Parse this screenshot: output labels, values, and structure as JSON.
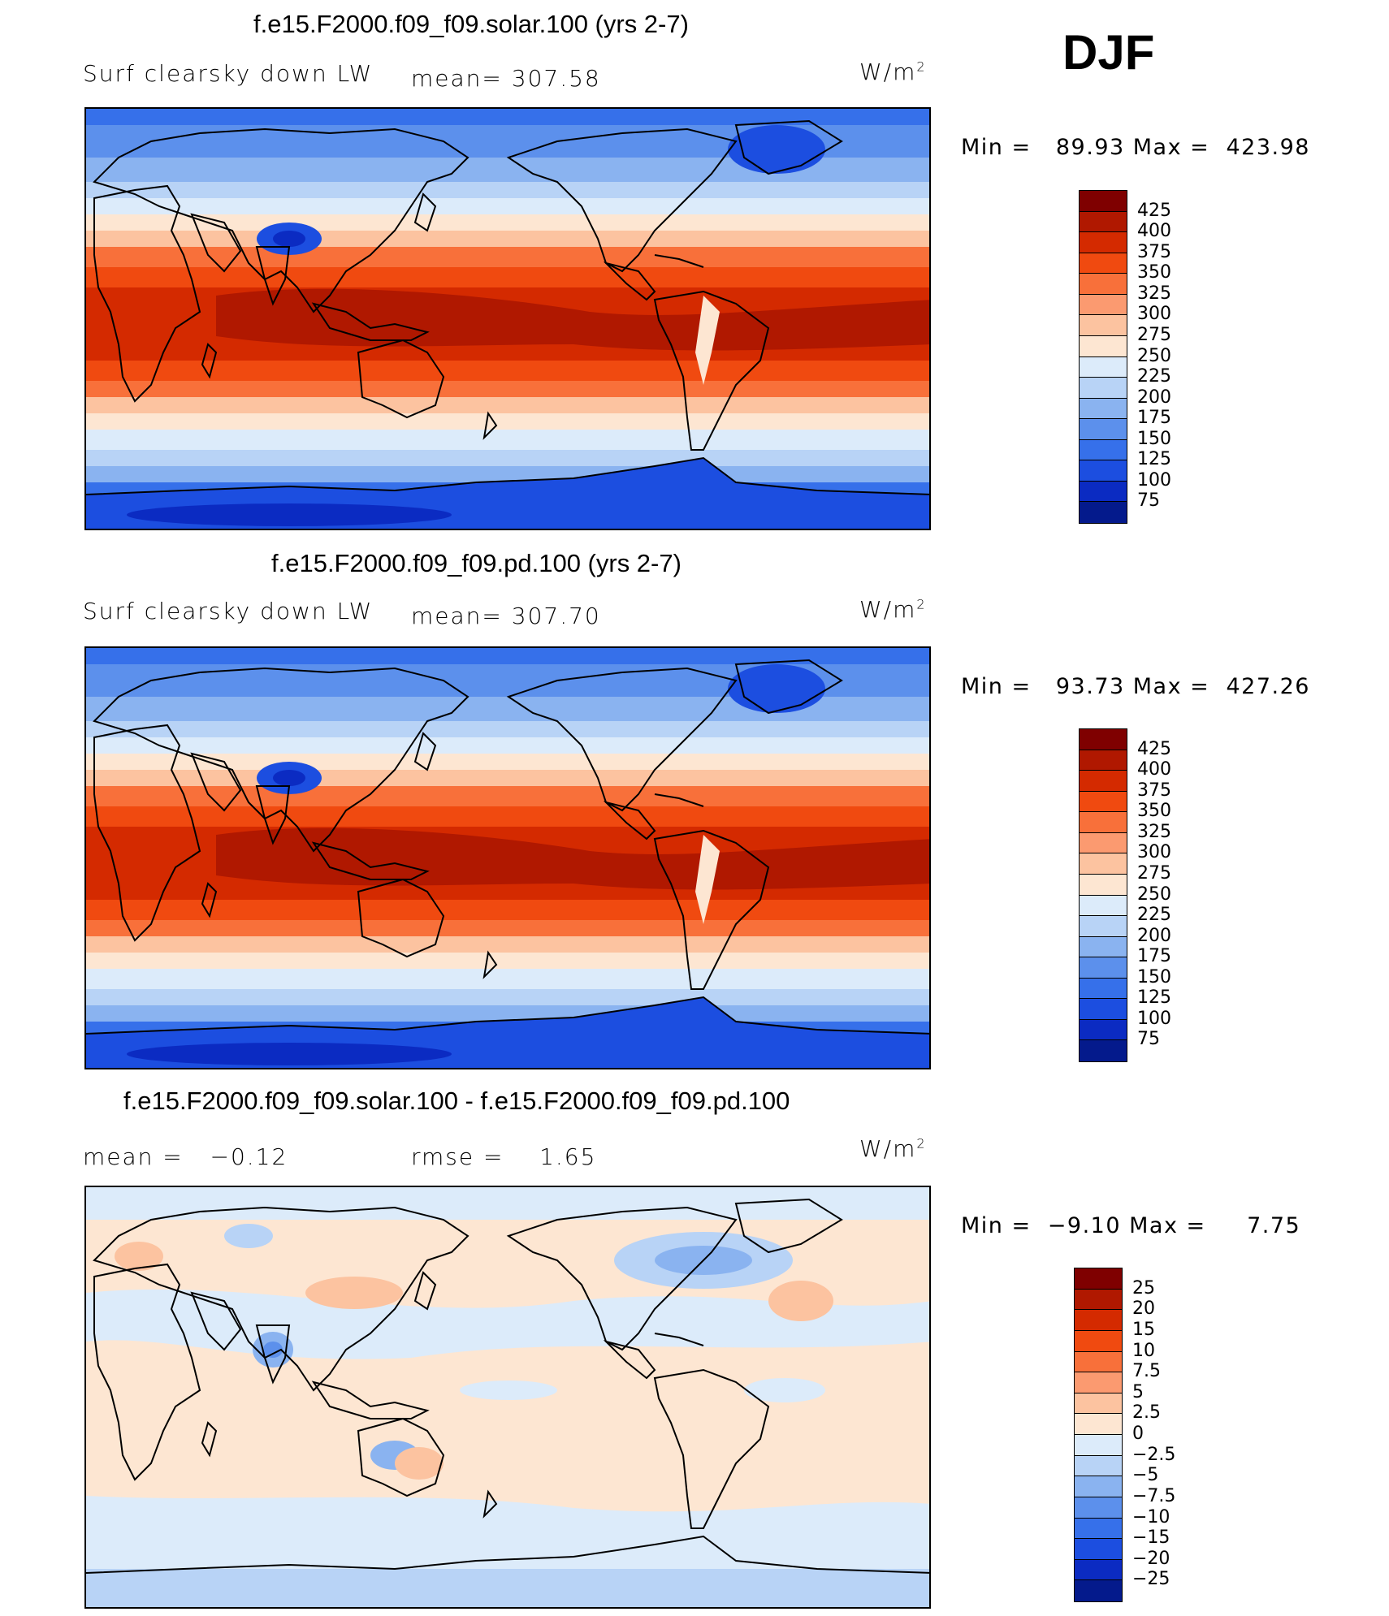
{
  "season": "DJF",
  "units": "W/m",
  "units_sup": "2",
  "panels": [
    {
      "title": "f.e15.F2000.f09_f09.solar.100 (yrs 2-7)",
      "left_label": "Surf clearsky down LW",
      "center_label": "mean= 307.58",
      "min_text": "Min =",
      "min_value": "89.93",
      "max_text": "Max =",
      "max_value": "423.98",
      "type": "field"
    },
    {
      "title": "f.e15.F2000.f09_f09.pd.100 (yrs 2-7)",
      "left_label": "Surf clearsky down LW",
      "center_label": "mean= 307.70",
      "min_text": "Min =",
      "min_value": "93.73",
      "max_text": "Max =",
      "max_value": "427.26",
      "type": "field"
    },
    {
      "title": "f.e15.F2000.f09_f09.solar.100 - f.e15.F2000.f09_f09.pd.100",
      "left_label": "mean =",
      "left_value": "−0.12",
      "center_label": "rmse =",
      "center_value": "1.65",
      "min_text": "Min =",
      "min_value": "−9.10",
      "max_text": "Max =",
      "max_value": "7.75",
      "type": "diff"
    }
  ],
  "field_colorbar": {
    "ticks": [
      "425",
      "400",
      "375",
      "350",
      "325",
      "300",
      "275",
      "250",
      "225",
      "200",
      "175",
      "150",
      "125",
      "100",
      "75"
    ],
    "colors": [
      "#7f0000",
      "#b01800",
      "#d42a00",
      "#f04a10",
      "#f8703a",
      "#fb9a70",
      "#fcc3a0",
      "#fde6d2",
      "#dcebfa",
      "#b8d3f6",
      "#8ab3f0",
      "#5c90ec",
      "#3670ea",
      "#1c4ee0",
      "#0b2bc2",
      "#041a8c"
    ]
  },
  "diff_colorbar": {
    "ticks": [
      "25",
      "20",
      "15",
      "10",
      "7.5",
      "5",
      "2.5",
      "0",
      "−2.5",
      "−5",
      "−7.5",
      "−10",
      "−15",
      "−20",
      "−25"
    ],
    "colors": [
      "#7f0000",
      "#b01800",
      "#d42a00",
      "#f04a10",
      "#f8703a",
      "#fb9a70",
      "#fcc3a0",
      "#fde6d2",
      "#dcebfa",
      "#b8d3f6",
      "#8ab3f0",
      "#5c90ec",
      "#3670ea",
      "#1c4ee0",
      "#0b2bc2",
      "#041a8c"
    ]
  }
}
